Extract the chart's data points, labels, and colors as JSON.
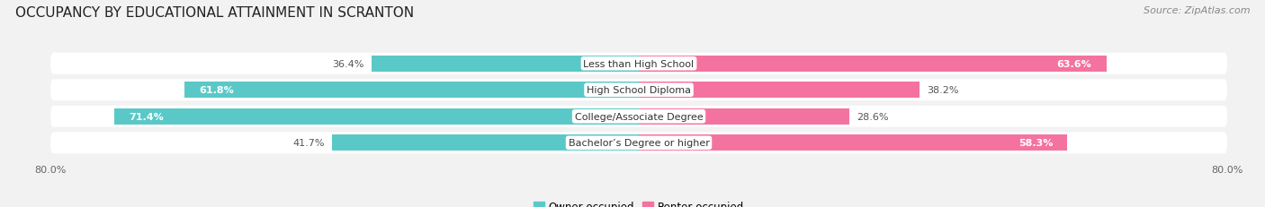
{
  "title": "OCCUPANCY BY EDUCATIONAL ATTAINMENT IN SCRANTON",
  "source": "Source: ZipAtlas.com",
  "categories": [
    "Less than High School",
    "High School Diploma",
    "College/Associate Degree",
    "Bachelor’s Degree or higher"
  ],
  "owner_pct": [
    36.4,
    61.8,
    71.4,
    41.7
  ],
  "renter_pct": [
    63.6,
    38.2,
    28.6,
    58.3
  ],
  "owner_color": "#5BC8C8",
  "renter_color": "#F472A0",
  "owner_label_white": [
    false,
    true,
    true,
    false
  ],
  "renter_label_white": [
    true,
    false,
    false,
    true
  ],
  "bar_height": 0.62,
  "xlim": [
    -80,
    80
  ],
  "bg_color": "#f2f2f2",
  "row_bg_color": "#e8e8e8",
  "row_bg_white": "#ffffff",
  "title_fontsize": 11,
  "source_fontsize": 8,
  "label_fontsize": 8,
  "category_fontsize": 8,
  "legend_fontsize": 8.5
}
